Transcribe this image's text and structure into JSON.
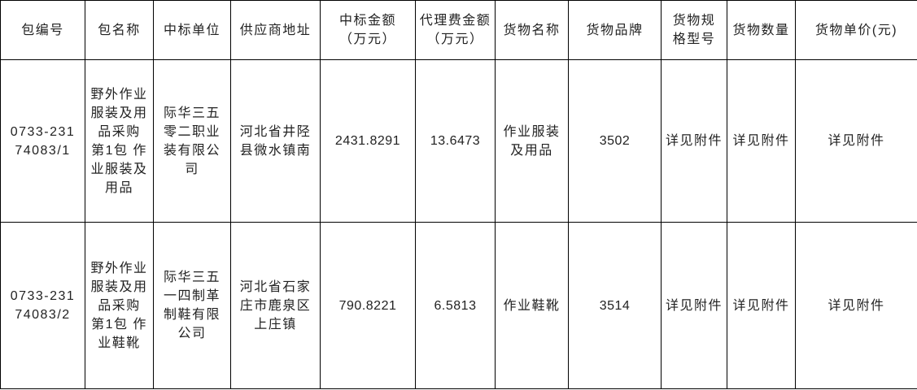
{
  "headers": [
    "包编号",
    "包名称",
    "中标单位",
    "供应商地址",
    "中标金额（万元）",
    "代理费金额（万元）",
    "货物名称",
    "货物品牌",
    "货物规格型号",
    "货物数量",
    "货物单价(元)"
  ],
  "rows": [
    {
      "package_no": "0733-23174083/1",
      "package_name": "野外作业服装及用品采购 第1包 作业服装及用品",
      "winner": "际华三五零二职业装有限公司",
      "address": "河北省井陉县微水镇南",
      "amount": "2431.8291",
      "agency_fee": "13.6473",
      "goods_name": "作业服装及用品",
      "brand": "3502",
      "spec": "详见附件",
      "quantity": "详见附件",
      "unit_price": "详见附件"
    },
    {
      "package_no": "0733-23174083/2",
      "package_name": "野外作业服装及用品采购 第1包 作业鞋靴",
      "winner": "际华三五一四制革制鞋有限公司",
      "address": "河北省石家庄市鹿泉区上庄镇",
      "amount": "790.8221",
      "agency_fee": "6.5813",
      "goods_name": "作业鞋靴",
      "brand": "3514",
      "spec": "详见附件",
      "quantity": "详见附件",
      "unit_price": "详见附件"
    }
  ]
}
